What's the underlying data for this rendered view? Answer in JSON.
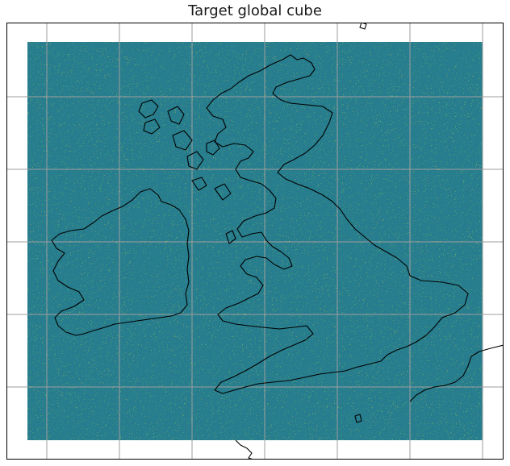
{
  "figure": {
    "title": "Target global cube"
  },
  "colors": {
    "background": "#ffffff",
    "frame": "#000000",
    "gridlines": "#9e9e9e",
    "coastline": "#000000",
    "colormap": [
      "#440154",
      "#3b528b",
      "#21918c",
      "#5ec962",
      "#fde725"
    ]
  },
  "map": {
    "projection": "regional",
    "features": [
      "random-field-raster",
      "coastlines",
      "gridlines"
    ],
    "gridlines": "on"
  }
}
